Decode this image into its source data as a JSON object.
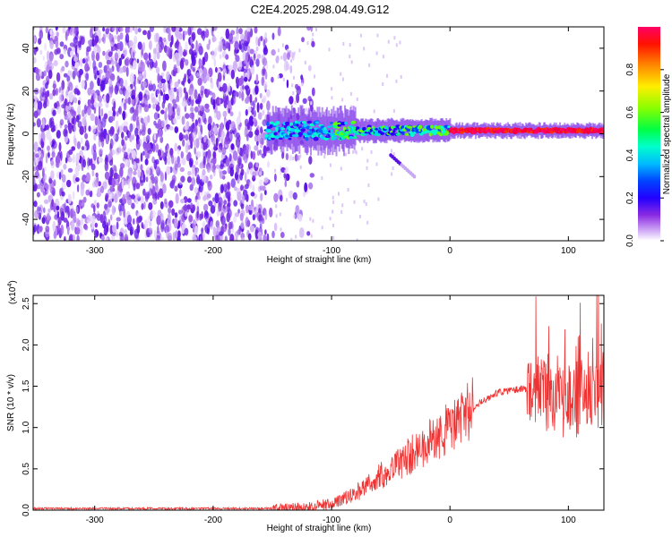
{
  "title": "C2E4.2025.298.04.49.G12",
  "chart_data": [
    {
      "type": "heatmap",
      "xlabel": "Height of straight line (km)",
      "ylabel": "Frequency (Hz)",
      "xlim": [
        -352,
        130
      ],
      "ylim": [
        -50,
        50
      ],
      "x_ticks": [
        -300,
        -200,
        -100,
        0,
        100
      ],
      "y_ticks": [
        -40,
        -20,
        0,
        20,
        40
      ],
      "colorbar": {
        "label": "Normalized spectral amplitude",
        "range": [
          0,
          1
        ],
        "ticks": [
          "0.0",
          "0.2",
          "0.4",
          "0.6",
          "0.8"
        ],
        "colors": [
          "#ffffff",
          "#d8b8f8",
          "#8a2be2",
          "#4400ff",
          "#0000ff",
          "#00aaff",
          "#00ffee",
          "#00ff66",
          "#44ff00",
          "#ccff00",
          "#ffff00",
          "#ffaa00",
          "#ff5500",
          "#ff0000",
          "#ff0066"
        ]
      },
      "features": {
        "noise_region_x": [
          -352,
          -155
        ],
        "ridge_frequency_hz": 1.5,
        "ridge_start_x": -155,
        "side_branch": {
          "x": [
            -50,
            -30
          ],
          "y": [
            -10,
            -20
          ]
        }
      }
    },
    {
      "type": "line",
      "xlabel": "Height of straight line (km)",
      "ylabel": "SNR (10 * v/v)",
      "y_multiplier": "(x10",
      "y_multiplier_exp": "4",
      "y_multiplier_close": ")",
      "xlim": [
        -352,
        130
      ],
      "ylim": [
        0,
        2.6
      ],
      "x_ticks": [
        -300,
        -200,
        -100,
        0,
        100
      ],
      "y_ticks": [
        "0.0",
        "0.5",
        "1.0",
        "1.5",
        "2.0",
        "2.5"
      ],
      "color": "#ee3333",
      "trend": [
        [
          -352,
          0.02
        ],
        [
          -150,
          0.02
        ],
        [
          -120,
          0.04
        ],
        [
          -100,
          0.08
        ],
        [
          -80,
          0.2
        ],
        [
          -60,
          0.4
        ],
        [
          -40,
          0.6
        ],
        [
          -20,
          0.8
        ],
        [
          0,
          1.0
        ],
        [
          20,
          1.25
        ],
        [
          40,
          1.42
        ],
        [
          60,
          1.47
        ],
        [
          70,
          1.45
        ],
        [
          80,
          1.4
        ],
        [
          90,
          1.35
        ],
        [
          100,
          1.35
        ],
        [
          110,
          1.4
        ],
        [
          120,
          1.45
        ],
        [
          130,
          1.5
        ]
      ]
    }
  ]
}
